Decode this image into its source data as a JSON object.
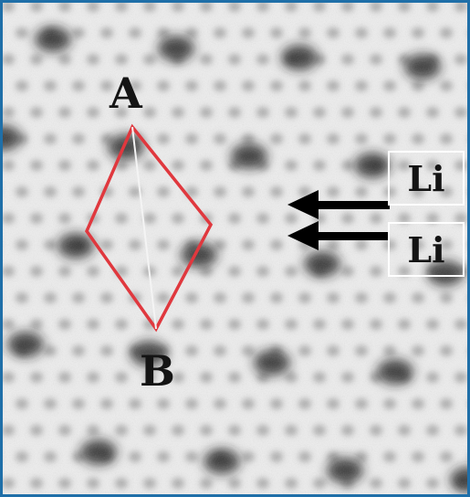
{
  "image": {
    "description_type": "atomic-resolution microscopy image",
    "lattice_colors": {
      "background": "#f2f2f2",
      "atom_dark": "#222222",
      "atom_mid": "#7a7a7a"
    },
    "frame_color": "#1f6fa8"
  },
  "annotations": {
    "point_a": "A",
    "point_b": "B",
    "rhombus_color": "#e0383e",
    "diagonal_color": "#f4f4f4",
    "li_labels": [
      "Li",
      "Li"
    ],
    "arrow_color": "#000000",
    "box_color": "#ffffff"
  }
}
